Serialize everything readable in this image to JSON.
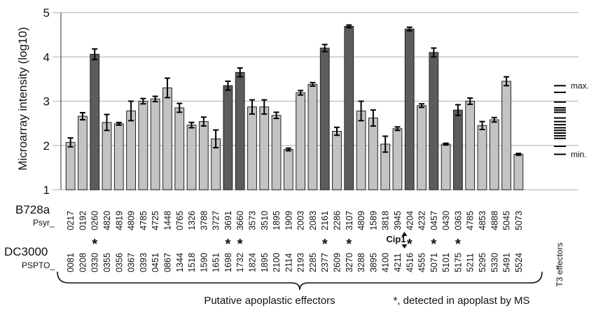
{
  "chart_data": {
    "type": "bar",
    "ylabel": "Microarray intensity (log10)",
    "ylim": [
      1,
      5
    ],
    "yticks": [
      1,
      2,
      3,
      4,
      5
    ],
    "grid": true,
    "row_labels": {
      "b728a_title": "B728a",
      "b728a_prefix": "Psyr_",
      "dc3000_title": "DC3000",
      "dc3000_prefix": "PSPTO_"
    },
    "colors": {
      "light": "#c3c3c3",
      "dark": "#5c5c5c",
      "grid": "#bdbdbd"
    },
    "bars": [
      {
        "b728a": "0217",
        "dc3000": "0081",
        "value": 2.07,
        "err": 0.1,
        "shade": "light",
        "star": false
      },
      {
        "b728a": "0192",
        "dc3000": "0208",
        "value": 2.66,
        "err": 0.08,
        "shade": "light",
        "star": false
      },
      {
        "b728a": "0260",
        "dc3000": "0330",
        "value": 4.06,
        "err": 0.12,
        "shade": "dark",
        "star": true
      },
      {
        "b728a": "4820",
        "dc3000": "0355",
        "value": 2.52,
        "err": 0.18,
        "shade": "light",
        "star": false
      },
      {
        "b728a": "4819",
        "dc3000": "0356",
        "value": 2.49,
        "err": 0.03,
        "shade": "light",
        "star": false
      },
      {
        "b728a": "4809",
        "dc3000": "0367",
        "value": 2.78,
        "err": 0.22,
        "shade": "light",
        "star": false
      },
      {
        "b728a": "4785",
        "dc3000": "0393",
        "value": 3.0,
        "err": 0.06,
        "shade": "light",
        "star": false
      },
      {
        "b728a": "4725",
        "dc3000": "0451",
        "value": 3.05,
        "err": 0.06,
        "shade": "light",
        "star": false
      },
      {
        "b728a": "1448",
        "dc3000": "0867",
        "value": 3.3,
        "err": 0.22,
        "shade": "light",
        "star": false
      },
      {
        "b728a": "0765",
        "dc3000": "1344",
        "value": 2.85,
        "err": 0.1,
        "shade": "light",
        "star": false
      },
      {
        "b728a": "1326",
        "dc3000": "1518",
        "value": 2.46,
        "err": 0.06,
        "shade": "light",
        "star": false
      },
      {
        "b728a": "3788",
        "dc3000": "1590",
        "value": 2.54,
        "err": 0.1,
        "shade": "light",
        "star": false
      },
      {
        "b728a": "3727",
        "dc3000": "1651",
        "value": 2.15,
        "err": 0.2,
        "shade": "light",
        "star": false
      },
      {
        "b728a": "3691",
        "dc3000": "1698",
        "value": 3.35,
        "err": 0.1,
        "shade": "dark",
        "star": true
      },
      {
        "b728a": "3660",
        "dc3000": "1732",
        "value": 3.65,
        "err": 0.1,
        "shade": "dark",
        "star": true
      },
      {
        "b728a": "3573",
        "dc3000": "1824",
        "value": 2.87,
        "err": 0.16,
        "shade": "light",
        "star": false
      },
      {
        "b728a": "3510",
        "dc3000": "1895",
        "value": 2.87,
        "err": 0.16,
        "shade": "light",
        "star": false
      },
      {
        "b728a": "1895",
        "dc3000": "2100",
        "value": 2.68,
        "err": 0.07,
        "shade": "light",
        "star": false
      },
      {
        "b728a": "1909",
        "dc3000": "2114",
        "value": 1.91,
        "err": 0.03,
        "shade": "light",
        "star": false
      },
      {
        "b728a": "2003",
        "dc3000": "2193",
        "value": 3.19,
        "err": 0.05,
        "shade": "light",
        "star": false
      },
      {
        "b728a": "2083",
        "dc3000": "2285",
        "value": 3.38,
        "err": 0.04,
        "shade": "light",
        "star": false
      },
      {
        "b728a": "2161",
        "dc3000": "2377",
        "value": 4.2,
        "err": 0.08,
        "shade": "dark",
        "star": true
      },
      {
        "b728a": "2286",
        "dc3000": "2609",
        "value": 2.32,
        "err": 0.09,
        "shade": "light",
        "star": false
      },
      {
        "b728a": "3107",
        "dc3000": "3270",
        "value": 4.69,
        "err": 0.03,
        "shade": "dark",
        "star": true
      },
      {
        "b728a": "4809",
        "dc3000": "3288",
        "value": 2.78,
        "err": 0.22,
        "shade": "light",
        "star": false
      },
      {
        "b728a": "1589",
        "dc3000": "3895",
        "value": 2.62,
        "err": 0.18,
        "shade": "light",
        "star": false
      },
      {
        "b728a": "3818",
        "dc3000": "4100",
        "value": 2.03,
        "err": 0.18,
        "shade": "light",
        "star": false
      },
      {
        "b728a": "3945",
        "dc3000": "4211",
        "value": 2.38,
        "err": 0.04,
        "shade": "light",
        "star": false
      },
      {
        "b728a": "4204",
        "dc3000": "4516",
        "value": 4.63,
        "err": 0.04,
        "shade": "dark",
        "star": true
      },
      {
        "b728a": "4232",
        "dc3000": "4555",
        "value": 2.9,
        "err": 0.04,
        "shade": "light",
        "star": false
      },
      {
        "b728a": "0457",
        "dc3000": "5071",
        "value": 4.1,
        "err": 0.1,
        "shade": "dark",
        "star": true
      },
      {
        "b728a": "0430",
        "dc3000": "5101",
        "value": 2.03,
        "err": 0.02,
        "shade": "light",
        "star": false
      },
      {
        "b728a": "0363",
        "dc3000": "5175",
        "value": 2.8,
        "err": 0.12,
        "shade": "dark",
        "star": true
      },
      {
        "b728a": "4785",
        "dc3000": "5211",
        "value": 3.0,
        "err": 0.07,
        "shade": "light",
        "star": false
      },
      {
        "b728a": "4853",
        "dc3000": "5295",
        "value": 2.45,
        "err": 0.09,
        "shade": "light",
        "star": false
      },
      {
        "b728a": "4888",
        "dc3000": "5330",
        "value": 2.58,
        "err": 0.05,
        "shade": "light",
        "star": false
      },
      {
        "b728a": "5045",
        "dc3000": "5491",
        "value": 3.45,
        "err": 0.1,
        "shade": "light",
        "star": false
      },
      {
        "b728a": "5073",
        "dc3000": "5524",
        "value": 1.8,
        "err": 0.02,
        "shade": "light",
        "star": false
      }
    ],
    "cip_label": "Cip1",
    "cip_bar_index": 27,
    "t3_effectors": {
      "label": "T3 effectors",
      "max_label": "max.",
      "min_label": "min.",
      "levels": [
        3.35,
        3.2,
        2.98,
        2.85,
        2.8,
        2.75,
        2.62,
        2.54,
        2.47,
        2.4,
        2.34,
        2.28,
        2.22,
        2.16,
        1.98,
        1.8
      ]
    },
    "footer": {
      "putative": "Putative apoplastic effectors",
      "ms_note": "*, detected in apoplast by MS"
    }
  }
}
